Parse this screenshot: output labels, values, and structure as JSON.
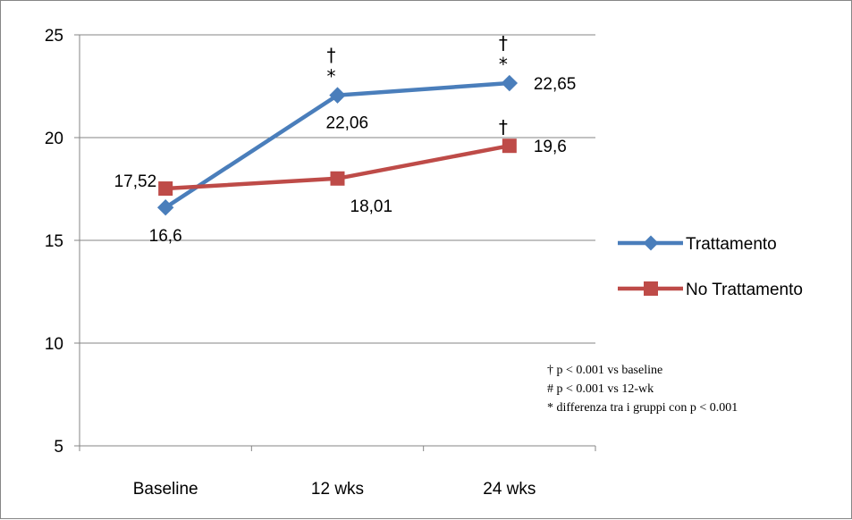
{
  "chart_data": {
    "type": "line",
    "categories": [
      "Baseline",
      "12 wks",
      "24 wks"
    ],
    "ylim": [
      5,
      25
    ],
    "yticks": [
      5,
      10,
      15,
      20,
      25
    ],
    "grid": true,
    "legend_position": "right",
    "series": [
      {
        "name": "Trattamento",
        "values": [
          16.6,
          22.06,
          22.65
        ],
        "labels": [
          "16,6",
          "22,06",
          "22,65"
        ],
        "color": "#4a7ebb",
        "marker": "diamond"
      },
      {
        "name": "No Trattamento",
        "values": [
          17.52,
          18.01,
          19.6
        ],
        "labels": [
          "17,52",
          "18,01",
          "19,6"
        ],
        "color": "#be4b48",
        "marker": "square"
      }
    ],
    "significance": [
      {
        "series": 0,
        "point": 1,
        "symbols": [
          "†",
          "*"
        ]
      },
      {
        "series": 0,
        "point": 2,
        "symbols": [
          "†",
          "*"
        ]
      },
      {
        "series": 1,
        "point": 2,
        "symbols": [
          "†"
        ]
      }
    ],
    "notes": [
      "† p < 0.001 vs baseline",
      "# p < 0.001 vs 12-wk",
      "* differenza tra i gruppi con p < 0.001"
    ]
  }
}
